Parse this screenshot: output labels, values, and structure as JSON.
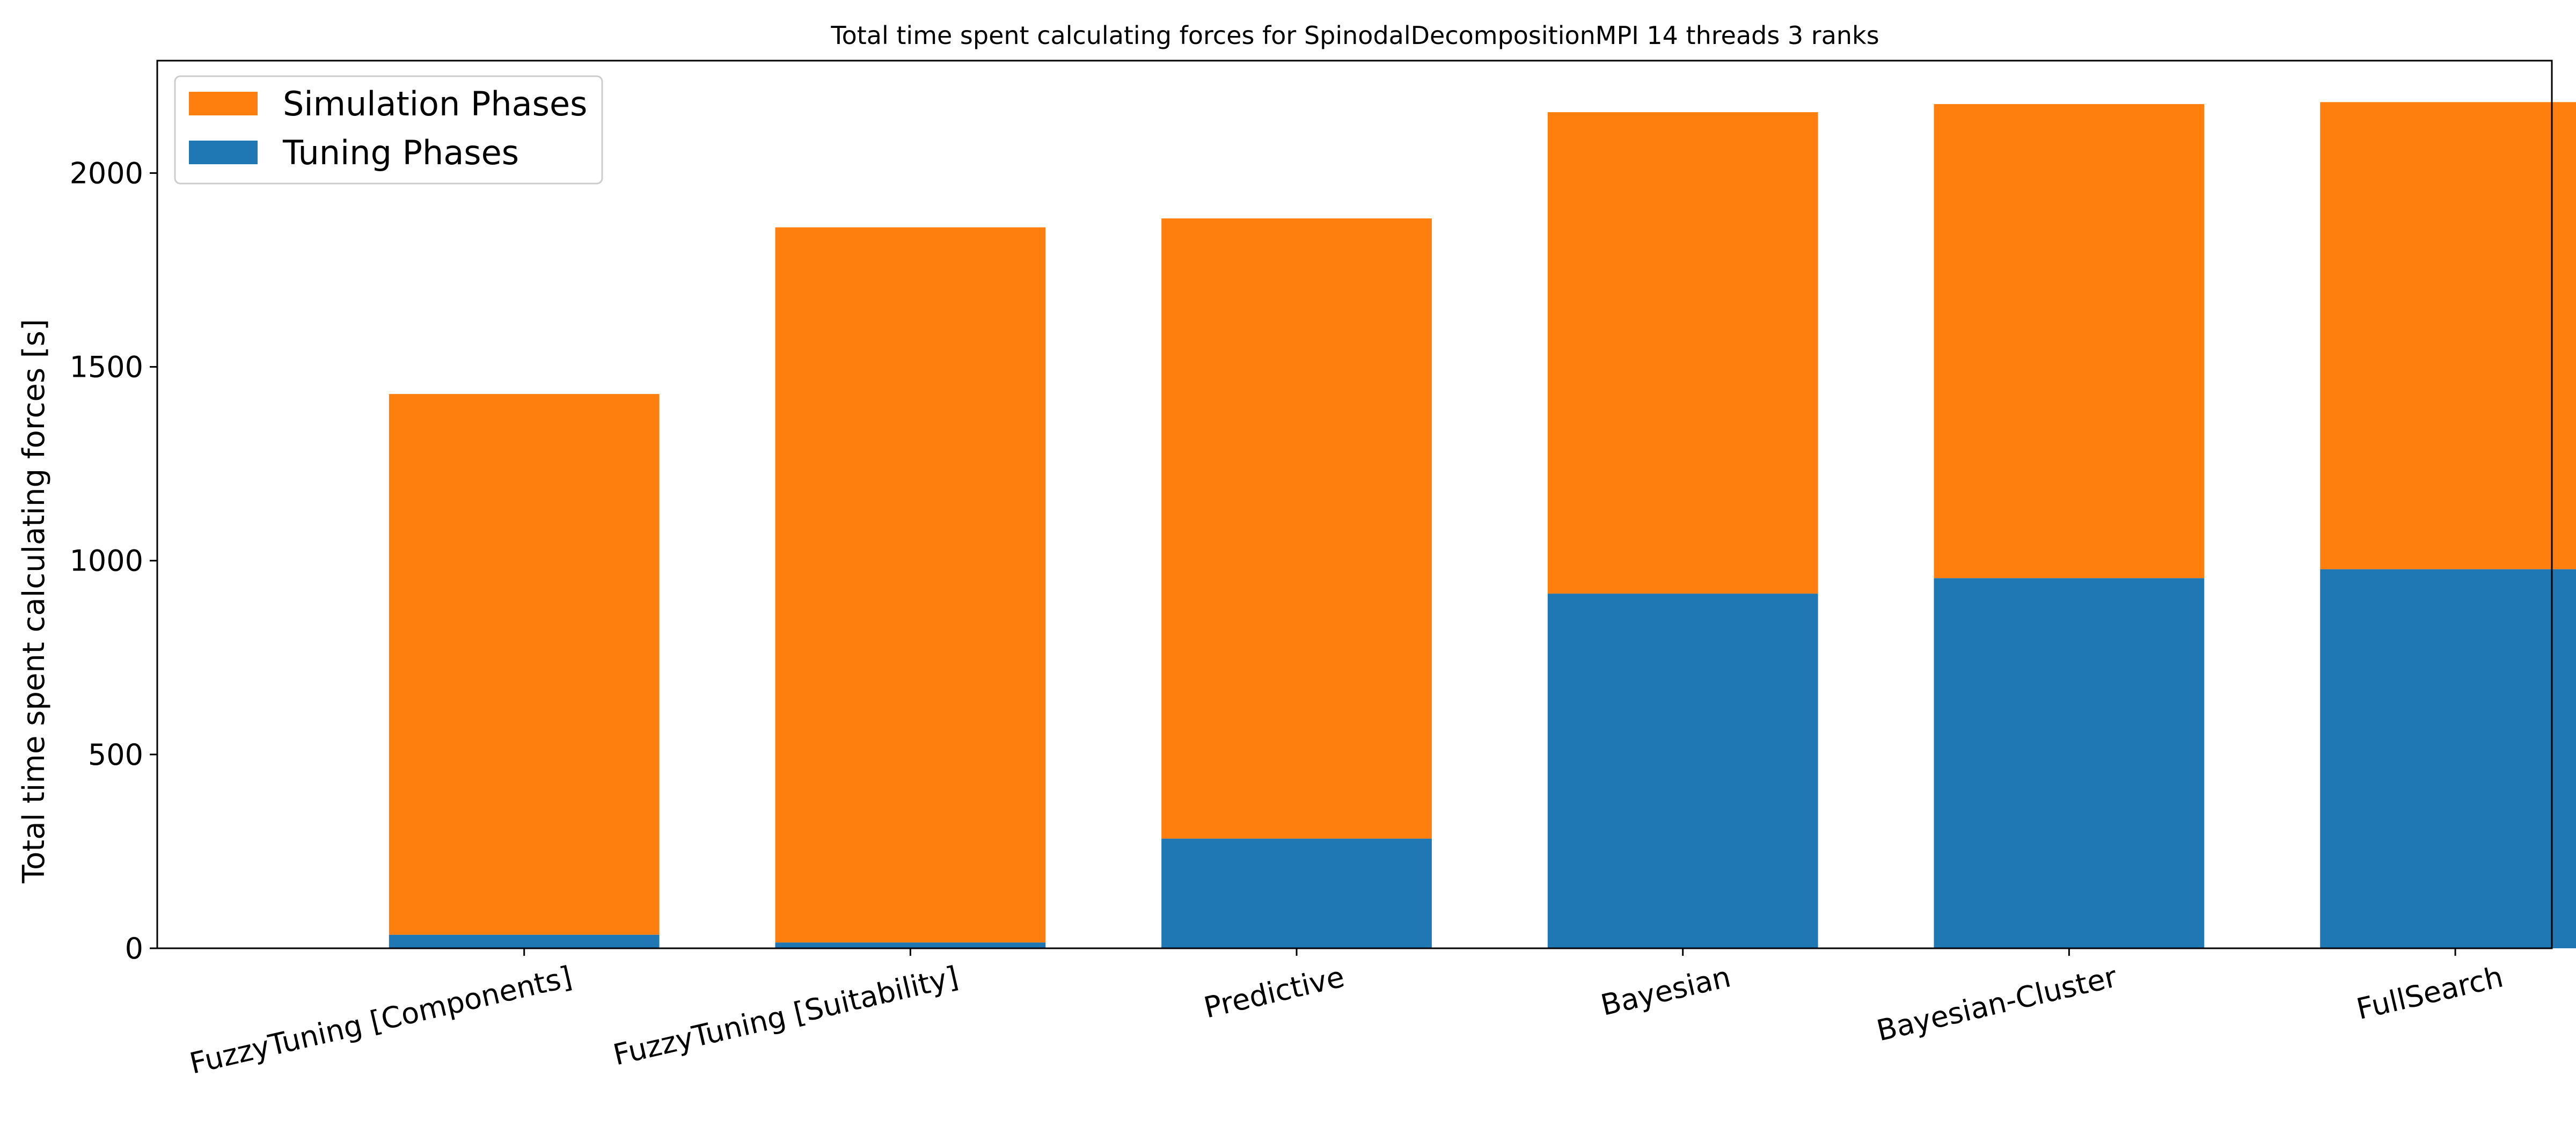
{
  "chart_data": {
    "type": "bar",
    "stacked": true,
    "title": "Total time spent calculating forces for SpinodalDecompositionMPI 14 threads 3 ranks",
    "xlabel": "",
    "ylabel": "Total time spent calculating forces [s]",
    "ylim": [
      0,
      2290
    ],
    "yticks": [
      0,
      500,
      1000,
      1500,
      2000
    ],
    "grid": false,
    "legend_position": "top-left",
    "categories": [
      "FuzzyTuning [Components]",
      "FuzzyTuning [Suitability]",
      "Predictive",
      "Bayesian",
      "Bayesian-Cluster",
      "FullSearch"
    ],
    "series": [
      {
        "name": "Tuning Phases",
        "color": "#1f77b4",
        "values": [
          35,
          15,
          283,
          915,
          955,
          978
        ]
      },
      {
        "name": "Simulation Phases",
        "color": "#ff7f0e",
        "values": [
          1395,
          1845,
          1600,
          1242,
          1223,
          1205
        ]
      }
    ],
    "legend_order": [
      "Simulation Phases",
      "Tuning Phases"
    ]
  }
}
